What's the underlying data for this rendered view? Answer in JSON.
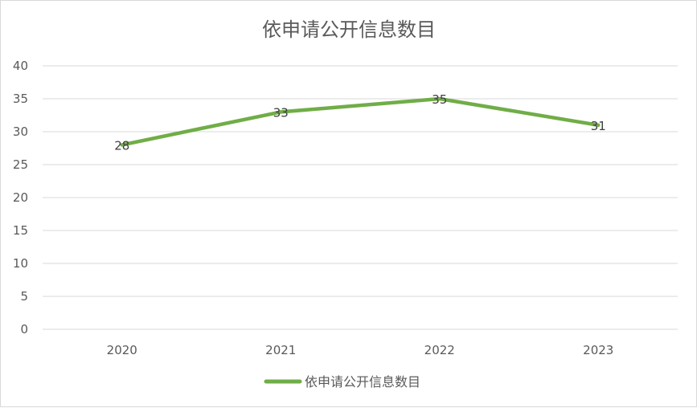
{
  "chart_data": {
    "type": "line",
    "title": "依申请公开信息数目",
    "categories": [
      "2020",
      "2021",
      "2022",
      "2023"
    ],
    "series": [
      {
        "name": "依申请公开信息数目",
        "values": [
          28,
          33,
          35,
          31
        ],
        "color": "#70ad47"
      }
    ],
    "data_labels": [
      "28",
      "33",
      "35",
      "31"
    ],
    "y_ticks": [
      "0",
      "5",
      "10",
      "15",
      "20",
      "25",
      "30",
      "35",
      "40"
    ],
    "ylim": [
      0,
      40
    ],
    "grid": true,
    "legend_position": "bottom",
    "gridline_color": "#d9d9d9",
    "text_color": "#595959"
  }
}
